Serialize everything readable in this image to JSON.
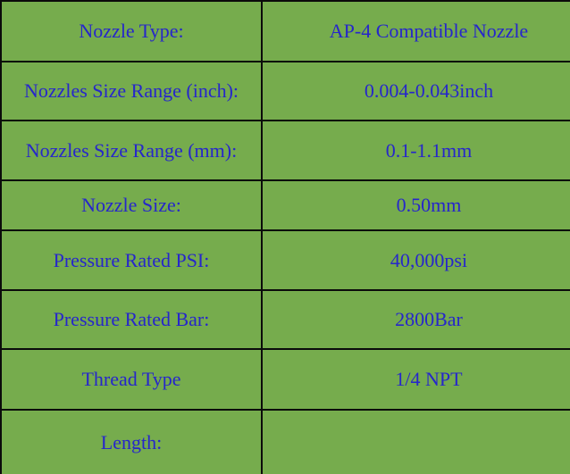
{
  "table": {
    "rows": [
      {
        "label": "Nozzle Type:",
        "value": "AP-4 Compatible Nozzle"
      },
      {
        "label": "Nozzles Size Range (inch):",
        "value": "0.004-0.043inch"
      },
      {
        "label": "Nozzles Size Range (mm):",
        "value": "0.1-1.1mm"
      },
      {
        "label": "Nozzle Size:",
        "value": "0.50mm"
      },
      {
        "label": "Pressure Rated PSI:",
        "value": "40,000psi"
      },
      {
        "label": "Pressure Rated Bar:",
        "value": "2800Bar"
      },
      {
        "label": "Thread Type",
        "value": "1/4 NPT"
      },
      {
        "label": "Length:",
        "value": ""
      }
    ]
  },
  "colors": {
    "cell_background": "#76AC4D",
    "text": "#2626CB",
    "border": "#0B0B0B"
  }
}
